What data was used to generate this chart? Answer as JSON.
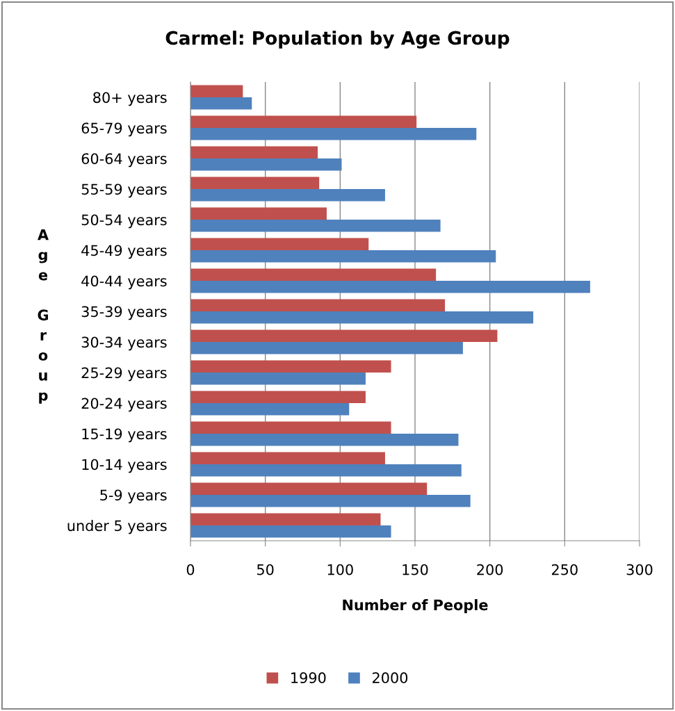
{
  "chart_data": {
    "type": "bar",
    "orientation": "horizontal",
    "title": "Carmel: Population by Age Group",
    "xlabel": "Number of People",
    "ylabel": "Age Group",
    "categories": [
      "80+ years",
      "65-79 years",
      "60-64 years",
      "55-59 years",
      "50-54 years",
      "45-49 years",
      "40-44 years",
      "35-39 years",
      "30-34 years",
      "25-29 years",
      "20-24 years",
      "15-19 years",
      "10-14 years",
      "5-9 years",
      "under 5 years"
    ],
    "series": [
      {
        "name": "1990",
        "color": "#c0504d",
        "values": [
          35,
          151,
          85,
          86,
          91,
          119,
          164,
          170,
          205,
          134,
          117,
          134,
          130,
          158,
          127
        ]
      },
      {
        "name": "2000",
        "color": "#4f81bd",
        "values": [
          41,
          191,
          101,
          130,
          167,
          204,
          267,
          229,
          182,
          117,
          106,
          179,
          181,
          187,
          134
        ]
      }
    ],
    "xlim": [
      0,
      300
    ],
    "xticks": [
      0,
      50,
      100,
      150,
      200,
      250,
      300
    ],
    "grid": "x",
    "legend": "bottom"
  }
}
